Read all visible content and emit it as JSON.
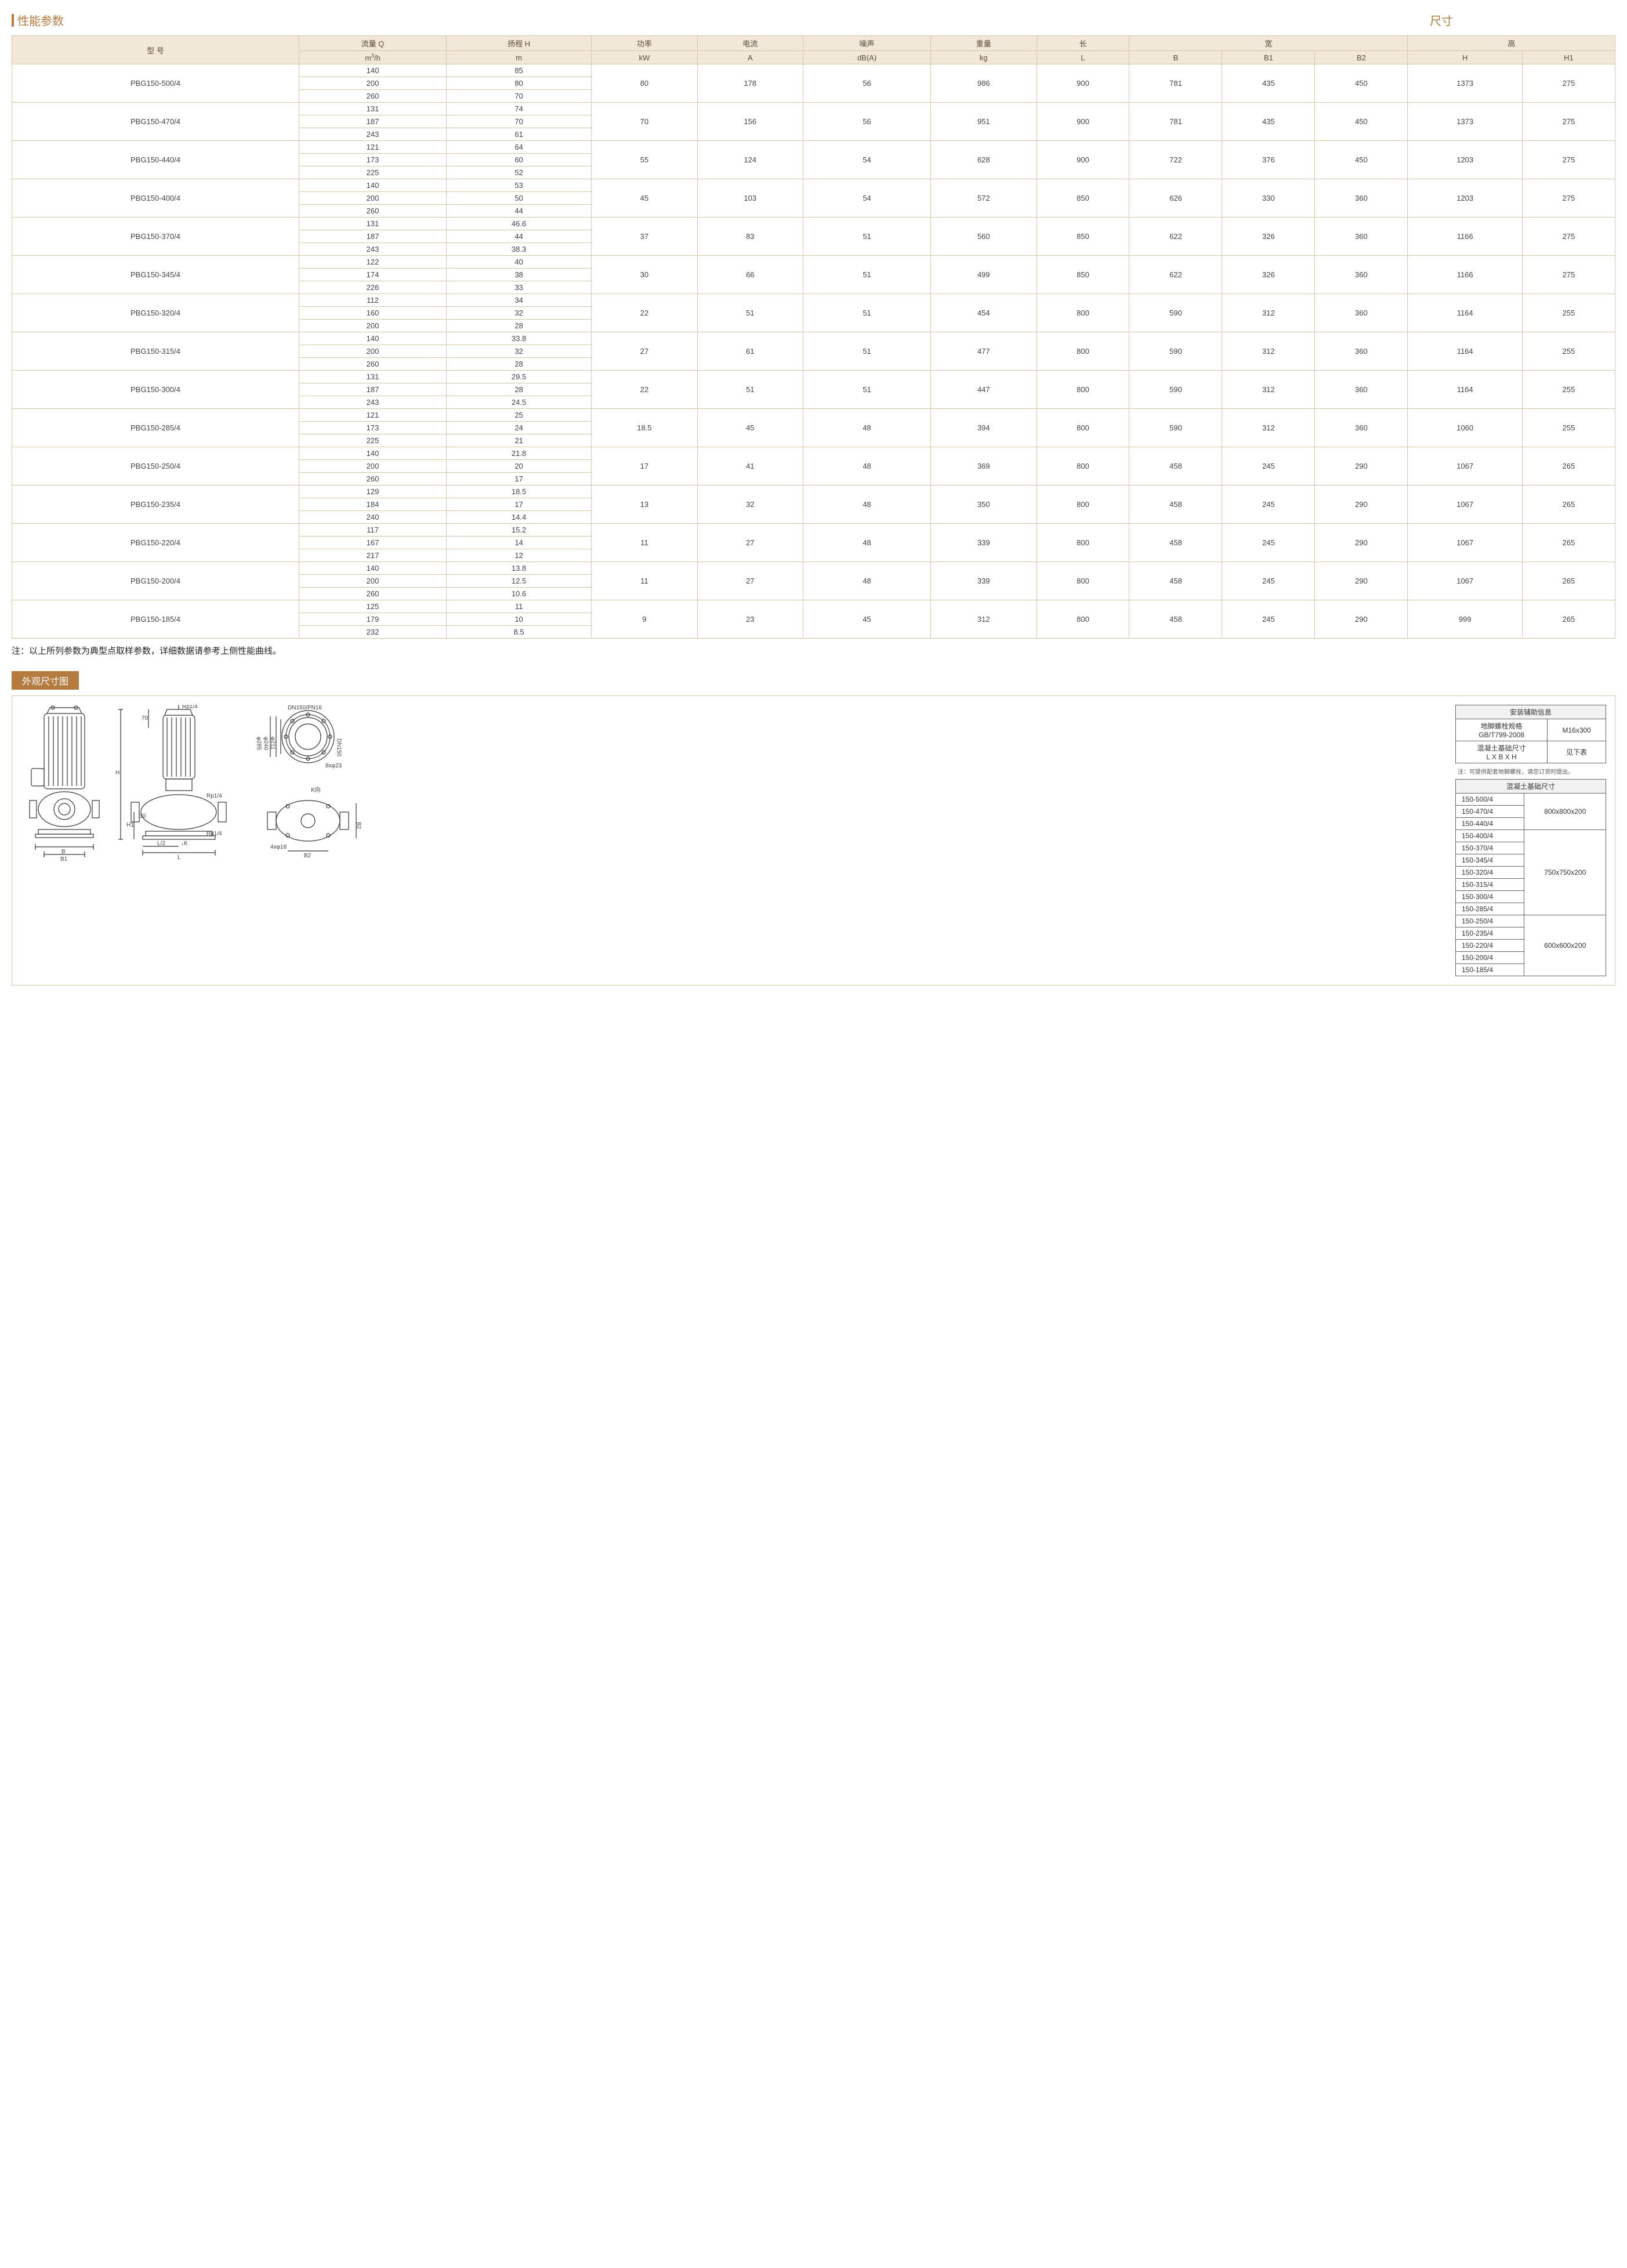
{
  "header": {
    "performance_label": "性能参数",
    "dimension_label": "尺寸"
  },
  "spec_table": {
    "columns": {
      "model": "型 号",
      "flow": "流量 Q",
      "flow_unit": "m³/h",
      "head": "扬程 H",
      "head_unit": "m",
      "power": "功率",
      "power_unit": "kW",
      "current": "电流",
      "current_unit": "A",
      "noise": "噪声",
      "noise_unit": "dB(A)",
      "weight": "重量",
      "weight_unit": "kg",
      "length": "长",
      "length_unit": "L",
      "width": "宽",
      "width_b": "B",
      "width_b1": "B1",
      "width_b2": "B2",
      "height": "高",
      "height_h": "H",
      "height_h1": "H1"
    },
    "rows": [
      {
        "model": "PBG150-500/4",
        "q": [
          "140",
          "200",
          "260"
        ],
        "h": [
          "85",
          "80",
          "70"
        ],
        "kw": "80",
        "a": "178",
        "db": "56",
        "kg": "986",
        "L": "900",
        "B": "781",
        "B1": "435",
        "B2": "450",
        "H": "1373",
        "H1": "275"
      },
      {
        "model": "PBG150-470/4",
        "q": [
          "131",
          "187",
          "243"
        ],
        "h": [
          "74",
          "70",
          "61"
        ],
        "kw": "70",
        "a": "156",
        "db": "56",
        "kg": "951",
        "L": "900",
        "B": "781",
        "B1": "435",
        "B2": "450",
        "H": "1373",
        "H1": "275"
      },
      {
        "model": "PBG150-440/4",
        "q": [
          "121",
          "173",
          "225"
        ],
        "h": [
          "64",
          "60",
          "52"
        ],
        "kw": "55",
        "a": "124",
        "db": "54",
        "kg": "628",
        "L": "900",
        "B": "722",
        "B1": "376",
        "B2": "450",
        "H": "1203",
        "H1": "275"
      },
      {
        "model": "PBG150-400/4",
        "q": [
          "140",
          "200",
          "260"
        ],
        "h": [
          "53",
          "50",
          "44"
        ],
        "kw": "45",
        "a": "103",
        "db": "54",
        "kg": "572",
        "L": "850",
        "B": "626",
        "B1": "330",
        "B2": "360",
        "H": "1203",
        "H1": "275"
      },
      {
        "model": "PBG150-370/4",
        "q": [
          "131",
          "187",
          "243"
        ],
        "h": [
          "46.6",
          "44",
          "38.3"
        ],
        "kw": "37",
        "a": "83",
        "db": "51",
        "kg": "560",
        "L": "850",
        "B": "622",
        "B1": "326",
        "B2": "360",
        "H": "1166",
        "H1": "275"
      },
      {
        "model": "PBG150-345/4",
        "q": [
          "122",
          "174",
          "226"
        ],
        "h": [
          "40",
          "38",
          "33"
        ],
        "kw": "30",
        "a": "66",
        "db": "51",
        "kg": "499",
        "L": "850",
        "B": "622",
        "B1": "326",
        "B2": "360",
        "H": "1166",
        "H1": "275"
      },
      {
        "model": "PBG150-320/4",
        "q": [
          "112",
          "160",
          "200"
        ],
        "h": [
          "34",
          "32",
          "28"
        ],
        "kw": "22",
        "a": "51",
        "db": "51",
        "kg": "454",
        "L": "800",
        "B": "590",
        "B1": "312",
        "B2": "360",
        "H": "1164",
        "H1": "255"
      },
      {
        "model": "PBG150-315/4",
        "q": [
          "140",
          "200",
          "260"
        ],
        "h": [
          "33.8",
          "32",
          "28"
        ],
        "kw": "27",
        "a": "61",
        "db": "51",
        "kg": "477",
        "L": "800",
        "B": "590",
        "B1": "312",
        "B2": "360",
        "H": "1164",
        "H1": "255"
      },
      {
        "model": "PBG150-300/4",
        "q": [
          "131",
          "187",
          "243"
        ],
        "h": [
          "29.5",
          "28",
          "24.5"
        ],
        "kw": "22",
        "a": "51",
        "db": "51",
        "kg": "447",
        "L": "800",
        "B": "590",
        "B1": "312",
        "B2": "360",
        "H": "1164",
        "H1": "255"
      },
      {
        "model": "PBG150-285/4",
        "q": [
          "121",
          "173",
          "225"
        ],
        "h": [
          "25",
          "24",
          "21"
        ],
        "kw": "18.5",
        "a": "45",
        "db": "48",
        "kg": "394",
        "L": "800",
        "B": "590",
        "B1": "312",
        "B2": "360",
        "H": "1060",
        "H1": "255"
      },
      {
        "model": "PBG150-250/4",
        "q": [
          "140",
          "200",
          "260"
        ],
        "h": [
          "21.8",
          "20",
          "17"
        ],
        "kw": "17",
        "a": "41",
        "db": "48",
        "kg": "369",
        "L": "800",
        "B": "458",
        "B1": "245",
        "B2": "290",
        "H": "1067",
        "H1": "265"
      },
      {
        "model": "PBG150-235/4",
        "q": [
          "129",
          "184",
          "240"
        ],
        "h": [
          "18.5",
          "17",
          "14.4"
        ],
        "kw": "13",
        "a": "32",
        "db": "48",
        "kg": "350",
        "L": "800",
        "B": "458",
        "B1": "245",
        "B2": "290",
        "H": "1067",
        "H1": "265"
      },
      {
        "model": "PBG150-220/4",
        "q": [
          "117",
          "167",
          "217"
        ],
        "h": [
          "15.2",
          "14",
          "12"
        ],
        "kw": "11",
        "a": "27",
        "db": "48",
        "kg": "339",
        "L": "800",
        "B": "458",
        "B1": "245",
        "B2": "290",
        "H": "1067",
        "H1": "265"
      },
      {
        "model": "PBG150-200/4",
        "q": [
          "140",
          "200",
          "260"
        ],
        "h": [
          "13.8",
          "12.5",
          "10.6"
        ],
        "kw": "11",
        "a": "27",
        "db": "48",
        "kg": "339",
        "L": "800",
        "B": "458",
        "B1": "245",
        "B2": "290",
        "H": "1067",
        "H1": "265"
      },
      {
        "model": "PBG150-185/4",
        "q": [
          "125",
          "179",
          "232"
        ],
        "h": [
          "11",
          "10",
          "8.5"
        ],
        "kw": "9",
        "a": "23",
        "db": "45",
        "kg": "312",
        "L": "800",
        "B": "458",
        "B1": "245",
        "B2": "290",
        "H": "999",
        "H1": "265"
      }
    ]
  },
  "note": "注：以上所列参数为典型点取样参数，详细数据请参考上侧性能曲线。",
  "outline": {
    "title": "外观尺寸图"
  },
  "drawing": {
    "rp14": "Rp1/4",
    "dn_label": "DN150/PN16",
    "d285": "φ285",
    "d240": "φ240",
    "d211": "φ211",
    "dn150": "DN150",
    "holes_8x23": "8xφ23",
    "holes_4x18": "4xφ18",
    "k_dir": "K向",
    "dim_70": "70",
    "dim_30": "30",
    "dim_H": "H",
    "dim_H1": "H1",
    "dim_L": "L",
    "dim_L2": "L/2",
    "dim_K": "K",
    "dim_B": "B",
    "dim_B1": "B1",
    "dim_B2": "B2"
  },
  "install_info": {
    "title": "安装辅助信息",
    "bolt_label": "地脚螺栓规格\nGB/T799-2008",
    "bolt_value": "M16x300",
    "concrete_label": "混凝土基础尺寸\nL X B X H",
    "concrete_value": "见下表",
    "note": "注：可提供配套地脚螺栓，请您订货时提出。"
  },
  "concrete_table": {
    "title": "混凝土基础尺寸",
    "groups": [
      {
        "models": [
          "150-500/4",
          "150-470/4",
          "150-440/4"
        ],
        "size": "800x800x200"
      },
      {
        "models": [
          "150-400/4",
          "150-370/4",
          "150-345/4",
          "150-320/4",
          "150-315/4",
          "150-300/4",
          "150-285/4"
        ],
        "size": "750x750x200"
      },
      {
        "models": [
          "150-250/4",
          "150-235/4",
          "150-220/4",
          "150-200/4",
          "150-185/4"
        ],
        "size": "600x600x200"
      }
    ]
  },
  "colors": {
    "accent": "#b57b3f",
    "border": "#d9c5a8",
    "th_bg": "#f2e8d9",
    "text": "#444444"
  }
}
